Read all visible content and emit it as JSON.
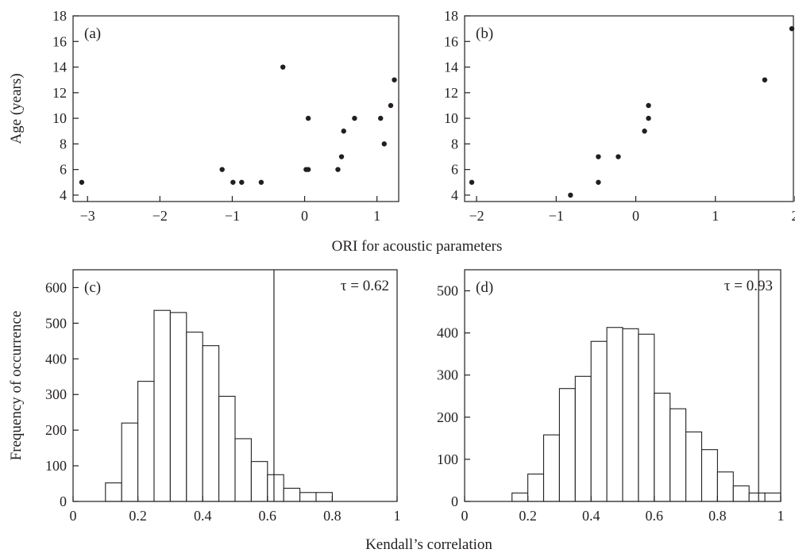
{
  "figure": {
    "shared_xlabel_top": "ORI for acoustic parameters",
    "shared_xlabel_bottom": "Kendall’s correlation"
  },
  "chart_data": [
    {
      "id": "a",
      "type": "scatter",
      "panel_label": "(a)",
      "ylabel": "Age (years)",
      "xlim": [
        -3.2,
        1.3
      ],
      "ylim": [
        3.5,
        18
      ],
      "xticks": [
        -3,
        -2,
        -1,
        0,
        1
      ],
      "xtick_labels": [
        "−3",
        "−2",
        "−1",
        "0",
        "1"
      ],
      "yticks": [
        4,
        6,
        8,
        10,
        12,
        14,
        16,
        18
      ],
      "points": [
        {
          "x": -3.08,
          "y": 5
        },
        {
          "x": -1.14,
          "y": 6
        },
        {
          "x": -0.99,
          "y": 5
        },
        {
          "x": -0.87,
          "y": 5
        },
        {
          "x": -0.6,
          "y": 5
        },
        {
          "x": -0.3,
          "y": 14
        },
        {
          "x": 0.02,
          "y": 6
        },
        {
          "x": 0.05,
          "y": 6
        },
        {
          "x": 0.05,
          "y": 10
        },
        {
          "x": 0.46,
          "y": 6
        },
        {
          "x": 0.51,
          "y": 7
        },
        {
          "x": 0.54,
          "y": 9
        },
        {
          "x": 0.69,
          "y": 10
        },
        {
          "x": 1.05,
          "y": 10
        },
        {
          "x": 1.1,
          "y": 8
        },
        {
          "x": 1.19,
          "y": 11
        },
        {
          "x": 1.24,
          "y": 13
        }
      ]
    },
    {
      "id": "b",
      "type": "scatter",
      "panel_label": "(b)",
      "ylabel": "",
      "xlim": [
        -2.15,
        1.98
      ],
      "ylim": [
        3.5,
        18
      ],
      "xticks": [
        -2,
        -1,
        0,
        1,
        2
      ],
      "xtick_labels": [
        "−2",
        "−1",
        "0",
        "1",
        "2"
      ],
      "yticks": [
        4,
        6,
        8,
        10,
        12,
        14,
        16,
        18
      ],
      "points": [
        {
          "x": -2.06,
          "y": 5
        },
        {
          "x": -0.82,
          "y": 4
        },
        {
          "x": -0.47,
          "y": 5
        },
        {
          "x": -0.47,
          "y": 7
        },
        {
          "x": -0.22,
          "y": 7
        },
        {
          "x": 0.11,
          "y": 9
        },
        {
          "x": 0.16,
          "y": 10
        },
        {
          "x": 0.16,
          "y": 11
        },
        {
          "x": 1.62,
          "y": 13
        },
        {
          "x": 1.96,
          "y": 17
        }
      ]
    },
    {
      "id": "c",
      "type": "bar",
      "panel_label": "(c)",
      "ylabel": "Frequency of occurrence",
      "xlim": [
        0,
        1
      ],
      "ylim": [
        0,
        650
      ],
      "xticks": [
        0,
        0.2,
        0.4,
        0.6,
        0.8,
        1
      ],
      "xtick_labels": [
        "0",
        "0.2",
        "0.4",
        "0.6",
        "0.8",
        "1"
      ],
      "yticks": [
        0,
        100,
        200,
        300,
        400,
        500,
        600
      ],
      "bin_width": 0.05,
      "bin_starts": [
        0.1,
        0.15,
        0.2,
        0.25,
        0.3,
        0.35,
        0.4,
        0.45,
        0.5,
        0.55,
        0.6,
        0.65,
        0.7,
        0.75
      ],
      "values": [
        52,
        220,
        337,
        536,
        530,
        475,
        437,
        295,
        176,
        112,
        75,
        37,
        25,
        25
      ],
      "observed_tau": 0.62,
      "annotation": "τ = 0.62"
    },
    {
      "id": "d",
      "type": "bar",
      "panel_label": "(d)",
      "ylabel": "",
      "xlim": [
        0,
        1
      ],
      "ylim": [
        0,
        550
      ],
      "xticks": [
        0,
        0.2,
        0.4,
        0.6,
        0.8,
        1
      ],
      "xtick_labels": [
        "0",
        "0.2",
        "0.4",
        "0.6",
        "0.8",
        "1"
      ],
      "yticks": [
        0,
        100,
        200,
        300,
        400,
        500
      ],
      "bin_width": 0.05,
      "bin_starts": [
        0.15,
        0.2,
        0.25,
        0.3,
        0.35,
        0.4,
        0.45,
        0.5,
        0.55,
        0.6,
        0.65,
        0.7,
        0.75,
        0.8,
        0.85,
        0.9,
        0.95
      ],
      "values": [
        20,
        65,
        158,
        268,
        297,
        380,
        413,
        410,
        397,
        257,
        220,
        165,
        123,
        70,
        37,
        20,
        20
      ],
      "observed_tau": 0.93,
      "annotation": "τ = 0.93"
    }
  ]
}
